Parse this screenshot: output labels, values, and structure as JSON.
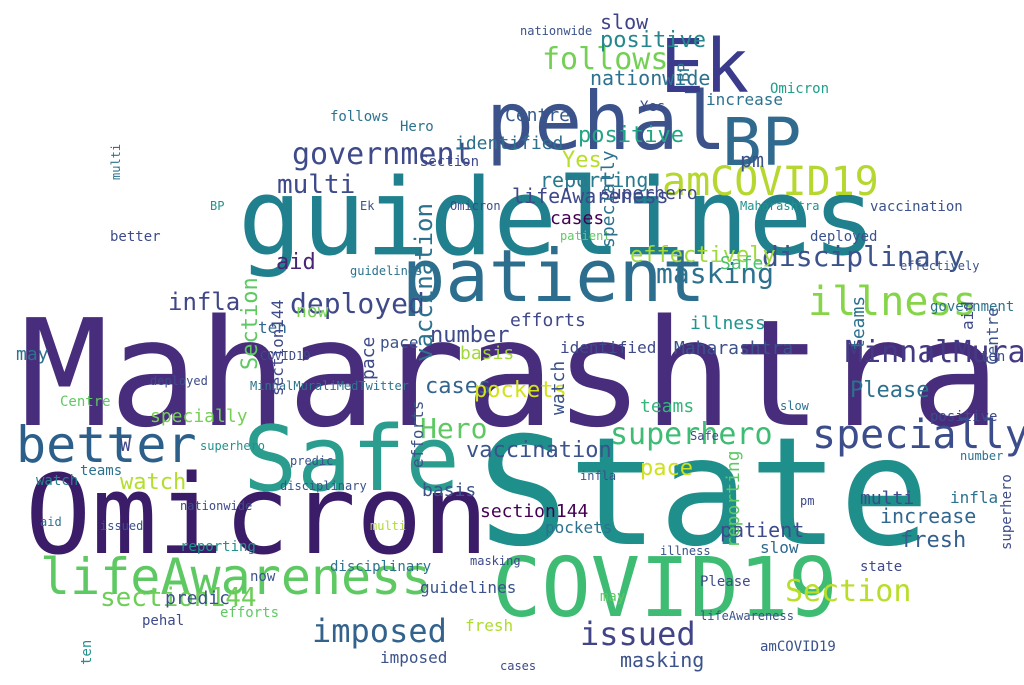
{
  "colors": {
    "background": "#ffffff",
    "palette": [
      "#440154",
      "#472d7b",
      "#3b528b",
      "#2c728e",
      "#21918c",
      "#28ae80",
      "#5ec962",
      "#addc30",
      "#fde725"
    ]
  },
  "words": [
    {
      "text": "Maharashtra",
      "color": "#472d7b"
    },
    {
      "text": "State",
      "color": "#1f8f8b"
    },
    {
      "text": "guidelines",
      "color": "#21808d"
    },
    {
      "text": "Omicron",
      "color": "#3b1c68"
    },
    {
      "text": "COVID19",
      "color": "#3fbc73"
    },
    {
      "text": "patient",
      "color": "#2d6e8e"
    },
    {
      "text": "Safe",
      "color": "#2a9d8f"
    },
    {
      "text": "pehal",
      "color": "#3b528b"
    },
    {
      "text": "Ek",
      "color": "#3b3b8b"
    },
    {
      "text": "BP",
      "color": "#306a8e"
    },
    {
      "text": "amCOVID19",
      "color": "#b5d730"
    },
    {
      "text": "lifeAwareness",
      "color": "#5ec962"
    },
    {
      "text": "better",
      "color": "#2c5f8a"
    },
    {
      "text": "specially",
      "color": "#3b4d8a"
    },
    {
      "text": "illness",
      "color": "#86d549"
    },
    {
      "text": "imposed",
      "color": "#33638d"
    },
    {
      "text": "issued",
      "color": "#414487"
    },
    {
      "text": "Section",
      "color": "#b8de29"
    },
    {
      "text": "government",
      "color": "#3e4a89"
    },
    {
      "text": "superhero",
      "color": "#3dbc74"
    },
    {
      "text": "Hero",
      "color": "#5ec962"
    },
    {
      "text": "section144",
      "color": "#6ece58"
    },
    {
      "text": "MinnalMuraliMedTwitter",
      "color": "#443a83"
    },
    {
      "text": "disciplinary",
      "color": "#3b528b"
    },
    {
      "text": "masking",
      "color": "#2c728e"
    },
    {
      "text": "follows",
      "color": "#73d055"
    },
    {
      "text": "multi",
      "color": "#3e4a89"
    },
    {
      "text": "deployed",
      "color": "#3e4989"
    },
    {
      "text": "fresh",
      "color": "#355f8d"
    },
    {
      "text": "Please",
      "color": "#2d708e"
    },
    {
      "text": "pm",
      "color": "#3b528b"
    },
    {
      "text": "effectively",
      "color": "#9fda3a"
    },
    {
      "text": "Yes",
      "color": "#b8de29"
    },
    {
      "text": "pace",
      "color": "#cde11d"
    },
    {
      "text": "cases",
      "color": "#32648e"
    },
    {
      "text": "increase",
      "color": "#31678e"
    },
    {
      "text": "slow",
      "color": "#404387"
    },
    {
      "text": "positive",
      "color": "#24878e"
    },
    {
      "text": "nationwide",
      "color": "#2c728e"
    },
    {
      "text": "Centre",
      "color": "#375a8c"
    },
    {
      "text": "reporting",
      "color": "#2a788e"
    },
    {
      "text": "identified",
      "color": "#2e6f8e"
    },
    {
      "text": "aid",
      "color": "#482475"
    },
    {
      "text": "now",
      "color": "#75d054"
    },
    {
      "text": "ten",
      "color": "#31688e"
    },
    {
      "text": "infla",
      "color": "#404688"
    },
    {
      "text": "may",
      "color": "#2c728e"
    },
    {
      "text": "predic",
      "color": "#3b528b"
    },
    {
      "text": "watch",
      "color": "#b4de2c"
    },
    {
      "text": "W",
      "color": "#404688"
    },
    {
      "text": "teams",
      "color": "#34b679"
    },
    {
      "text": "number",
      "color": "#3e4a89"
    },
    {
      "text": "vaccination",
      "color": "#3b528b"
    },
    {
      "text": "pockets",
      "color": "#d2e21b"
    },
    {
      "text": "basis",
      "color": "#a0da39"
    },
    {
      "text": "efforts",
      "color": "#3f4889"
    },
    {
      "text": "lifeAwareness",
      "color": "#3f4889"
    },
    {
      "text": "positive",
      "color": "#21a685"
    },
    {
      "text": "superhero",
      "color": "#3e4a89"
    },
    {
      "text": "cases",
      "color": "#440154"
    },
    {
      "text": "increase",
      "color": "#2c728e"
    },
    {
      "text": "Omicron",
      "color": "#1f9e89"
    },
    {
      "text": "Maharashtra",
      "color": "#3b528b"
    },
    {
      "text": "illness",
      "color": "#1f948c"
    },
    {
      "text": "Safe",
      "color": "#4ac16d"
    },
    {
      "text": "patient",
      "color": "#3e4a89"
    },
    {
      "text": "slow",
      "color": "#30698e"
    },
    {
      "text": "multi",
      "color": "#3e4a89"
    },
    {
      "text": "infla",
      "color": "#2c728e"
    },
    {
      "text": "masking",
      "color": "#3b528b"
    },
    {
      "text": "section144",
      "color": "#440154"
    },
    {
      "text": "basis",
      "color": "#3b528b"
    },
    {
      "text": "pockets",
      "color": "#2c728e"
    },
    {
      "text": "guidelines",
      "color": "#3b528b"
    },
    {
      "text": "pehal",
      "color": "#3e4a89"
    },
    {
      "text": "teams",
      "color": "#2c728e"
    },
    {
      "text": "watch",
      "color": "#26828e"
    },
    {
      "text": "efforts",
      "color": "#5ec962"
    },
    {
      "text": "imposed",
      "color": "#3b528b"
    },
    {
      "text": "fresh",
      "color": "#addc30"
    },
    {
      "text": "pace",
      "color": "#3b528b"
    },
    {
      "text": "identified",
      "color": "#3e4a89"
    },
    {
      "text": "Hero",
      "color": "#2c728e"
    },
    {
      "text": "deployed",
      "color": "#3b528b"
    },
    {
      "text": "specially",
      "color": "#75d054"
    },
    {
      "text": "better",
      "color": "#3e4a89"
    },
    {
      "text": "Centre",
      "color": "#5ec962"
    },
    {
      "text": "reporting",
      "color": "#21918c"
    },
    {
      "text": "now",
      "color": "#3b528b"
    },
    {
      "text": "disciplinary",
      "color": "#2c728e"
    },
    {
      "text": "Please",
      "color": "#3e4a89"
    },
    {
      "text": "amCOVID19",
      "color": "#3b528b"
    },
    {
      "text": "state",
      "color": "#3e4a89"
    },
    {
      "text": "government",
      "color": "#2c728e"
    },
    {
      "text": "positive",
      "color": "#3e4a89"
    },
    {
      "text": "vaccination",
      "color": "#3b528b"
    },
    {
      "text": "Section",
      "color": "#3e4a89"
    },
    {
      "text": "follows",
      "color": "#2c728e"
    },
    {
      "text": "nationwide",
      "color": "#3b528b"
    },
    {
      "text": "Yes",
      "color": "#3e4a89"
    },
    {
      "text": "BP",
      "color": "#21918c"
    },
    {
      "text": "Ek",
      "color": "#3b528b"
    },
    {
      "text": "ten",
      "color": "#3e4a89"
    },
    {
      "text": "may",
      "color": "#5ec962"
    },
    {
      "text": "predic",
      "color": "#3b528b"
    },
    {
      "text": "aid",
      "color": "#2c728e"
    },
    {
      "text": "issued",
      "color": "#3b528b"
    },
    {
      "text": "number",
      "color": "#2c728e"
    },
    {
      "text": "cases",
      "color": "#3e4a89"
    },
    {
      "text": "lifeAwareness",
      "color": "#3b528b"
    },
    {
      "text": "MinnalMuraliMedTwitter",
      "color": "#2c728e"
    },
    {
      "text": "COVID19",
      "color": "#3e4a89"
    },
    {
      "text": "superhero",
      "color": "#21918c"
    },
    {
      "text": "multi",
      "color": "#addc30"
    },
    {
      "text": "illness",
      "color": "#3b528b"
    },
    {
      "text": "pm",
      "color": "#3e4a89"
    },
    {
      "text": "effectively",
      "color": "#3b528b"
    },
    {
      "text": "Omicron",
      "color": "#3e4a89"
    },
    {
      "text": "patient",
      "color": "#5ec962"
    },
    {
      "text": "Maharashtra",
      "color": "#21918c"
    },
    {
      "text": "guidelines",
      "color": "#2c728e"
    },
    {
      "text": "masking",
      "color": "#3e4a89"
    },
    {
      "text": "infla",
      "color": "#3b528b"
    },
    {
      "text": "Safe",
      "color": "#3e4a89"
    },
    {
      "text": "slow",
      "color": "#2c728e"
    },
    {
      "text": "deployed",
      "color": "#3e4a89"
    },
    {
      "text": "nationwide",
      "color": "#3e4a89"
    },
    {
      "text": "disciplinary",
      "color": "#3b528b"
    },
    {
      "text": "vaccination",
      "color": "#2c728e"
    },
    {
      "text": "Section",
      "color": "#5ec962"
    },
    {
      "text": "section144",
      "color": "#3e4a89"
    },
    {
      "text": "reporting",
      "color": "#5ec962"
    },
    {
      "text": "teams",
      "color": "#2c728e"
    },
    {
      "text": "Centre",
      "color": "#3b528b"
    },
    {
      "text": "superhero",
      "color": "#3e4a89"
    },
    {
      "text": "watch",
      "color": "#3b528b"
    },
    {
      "text": "efforts",
      "color": "#3b528b"
    },
    {
      "text": "pace",
      "color": "#3e4a89"
    },
    {
      "text": "specially",
      "color": "#2c728e"
    },
    {
      "text": "BP",
      "color": "#2c728e"
    },
    {
      "text": "aid",
      "color": "#3e4a89"
    },
    {
      "text": "ten",
      "color": "#21918c"
    },
    {
      "text": "multi",
      "color": "#2c728e"
    }
  ]
}
